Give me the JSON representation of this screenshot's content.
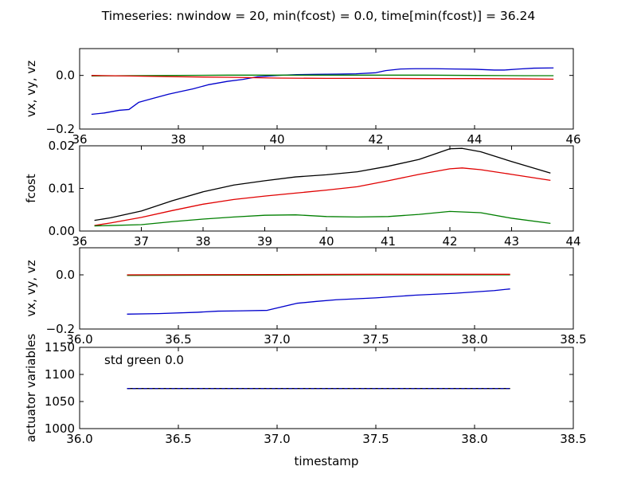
{
  "figure": {
    "title": "Timeseries: nwindow = 20, min(fcost) = 0.0, time[min(fcost)] = 36.24",
    "colors": {
      "blue": "#0000cc",
      "green": "#007f00",
      "red": "#e00000",
      "black": "#000000"
    }
  },
  "chart_data": [
    {
      "type": "line",
      "ylabel": "vx, vy, vz",
      "xlim": [
        36,
        46
      ],
      "ylim": [
        -0.2,
        0.1
      ],
      "xticks": [
        36,
        38,
        40,
        42,
        44,
        46
      ],
      "yticks": [
        -0.2,
        0.0
      ],
      "xticklabels": [
        "36",
        "38",
        "40",
        "42",
        "44",
        "46"
      ],
      "yticklabels": [
        "−0.2",
        "0.0"
      ],
      "series": [
        {
          "color": "#0000cc",
          "x": [
            36.24,
            36.5,
            36.8,
            37.0,
            37.2,
            37.5,
            37.8,
            38.0,
            38.3,
            38.6,
            39.0,
            39.3,
            39.6,
            40.0,
            40.4,
            40.8,
            41.2,
            41.6,
            42.0,
            42.2,
            42.5,
            42.8,
            43.2,
            43.6,
            44.0,
            44.4,
            44.6,
            44.9,
            45.2,
            45.6
          ],
          "y": [
            -0.145,
            -0.14,
            -0.13,
            -0.127,
            -0.1,
            -0.085,
            -0.07,
            -0.062,
            -0.05,
            -0.035,
            -0.022,
            -0.015,
            -0.005,
            0.0,
            0.003,
            0.004,
            0.005,
            0.006,
            0.01,
            0.018,
            0.024,
            0.025,
            0.025,
            0.024,
            0.023,
            0.02,
            0.02,
            0.024,
            0.027,
            0.028
          ]
        },
        {
          "color": "#007f00",
          "x": [
            36.24,
            37.0,
            38.0,
            39.0,
            40.0,
            41.0,
            42.0,
            43.0,
            44.0,
            45.0,
            45.6
          ],
          "y": [
            -0.002,
            -0.001,
            0.0,
            0.001,
            0.001,
            0.001,
            0.001,
            0.001,
            0.0,
            -0.001,
            -0.001
          ]
        },
        {
          "color": "#e00000",
          "x": [
            36.24,
            37.0,
            38.0,
            39.0,
            40.0,
            41.0,
            42.0,
            43.0,
            44.0,
            45.0,
            45.6
          ],
          "y": [
            0.0,
            -0.002,
            -0.005,
            -0.007,
            -0.01,
            -0.011,
            -0.011,
            -0.012,
            -0.012,
            -0.013,
            -0.014
          ]
        }
      ]
    },
    {
      "type": "line",
      "ylabel": "fcost",
      "xlim": [
        36,
        44
      ],
      "ylim": [
        0.0,
        0.02
      ],
      "xticks": [
        36,
        37,
        38,
        39,
        40,
        41,
        42,
        43,
        44
      ],
      "yticks": [
        0.0,
        0.01,
        0.02
      ],
      "xticklabels": [
        "36",
        "37",
        "38",
        "39",
        "40",
        "41",
        "42",
        "43",
        "44"
      ],
      "yticklabels": [
        "0.00",
        "0.01",
        "0.02"
      ],
      "series": [
        {
          "color": "#000000",
          "x": [
            36.24,
            36.5,
            37.0,
            37.5,
            38.0,
            38.5,
            39.0,
            39.5,
            40.0,
            40.5,
            41.0,
            41.5,
            41.8,
            42.0,
            42.2,
            42.5,
            43.0,
            43.63
          ],
          "y": [
            0.0025,
            0.0031,
            0.0047,
            0.0071,
            0.0092,
            0.0108,
            0.0118,
            0.0127,
            0.0132,
            0.0139,
            0.0152,
            0.0168,
            0.0183,
            0.0193,
            0.0194,
            0.0186,
            0.0163,
            0.0136
          ]
        },
        {
          "color": "#e00000",
          "x": [
            36.24,
            36.5,
            37.0,
            37.5,
            38.0,
            38.5,
            39.0,
            39.5,
            40.0,
            40.5,
            41.0,
            41.5,
            42.0,
            42.2,
            42.5,
            43.0,
            43.63
          ],
          "y": [
            0.0013,
            0.0019,
            0.0032,
            0.0048,
            0.0063,
            0.0074,
            0.0082,
            0.0089,
            0.0096,
            0.0104,
            0.0118,
            0.0133,
            0.0146,
            0.0148,
            0.0144,
            0.0133,
            0.0119
          ]
        },
        {
          "color": "#007f00",
          "x": [
            36.24,
            36.5,
            37.0,
            37.5,
            38.0,
            38.5,
            39.0,
            39.5,
            40.0,
            40.5,
            41.0,
            41.5,
            42.0,
            42.5,
            43.0,
            43.63
          ],
          "y": [
            0.0012,
            0.0013,
            0.0015,
            0.0022,
            0.0028,
            0.0033,
            0.0037,
            0.0038,
            0.0034,
            0.0033,
            0.0034,
            0.0039,
            0.0046,
            0.0043,
            0.003,
            0.0018
          ]
        }
      ]
    },
    {
      "type": "line",
      "ylabel": "vx, vy, vz",
      "xlim": [
        36.0,
        38.5
      ],
      "ylim": [
        -0.2,
        0.1
      ],
      "xticks": [
        36.0,
        36.5,
        37.0,
        37.5,
        38.0,
        38.5
      ],
      "yticks": [
        -0.2,
        0.0
      ],
      "xticklabels": [
        "36.0",
        "36.5",
        "37.0",
        "37.5",
        "38.0",
        "38.5"
      ],
      "yticklabels": [
        "−0.2",
        "0.0"
      ],
      "series": [
        {
          "color": "#0000cc",
          "x": [
            36.24,
            36.4,
            36.6,
            36.7,
            36.8,
            36.95,
            37.1,
            37.2,
            37.3,
            37.5,
            37.7,
            37.9,
            38.1,
            38.18
          ],
          "y": [
            -0.145,
            -0.143,
            -0.138,
            -0.134,
            -0.133,
            -0.131,
            -0.105,
            -0.098,
            -0.092,
            -0.085,
            -0.075,
            -0.068,
            -0.058,
            -0.052
          ]
        },
        {
          "color": "#007f00",
          "x": [
            36.24,
            37.0,
            37.5,
            38.18
          ],
          "y": [
            -0.002,
            -0.001,
            0.0,
            0.0
          ]
        },
        {
          "color": "#e00000",
          "x": [
            36.24,
            37.0,
            37.5,
            38.18
          ],
          "y": [
            0.0,
            0.001,
            0.002,
            0.002
          ]
        }
      ]
    },
    {
      "type": "line",
      "ylabel": "actuator variables",
      "xlabel": "timestamp",
      "xlim": [
        36.0,
        38.5
      ],
      "ylim": [
        1000,
        1150
      ],
      "xticks": [
        36.0,
        36.5,
        37.0,
        37.5,
        38.0,
        38.5
      ],
      "yticks": [
        1000,
        1050,
        1100,
        1150
      ],
      "xticklabels": [
        "36.0",
        "36.5",
        "37.0",
        "37.5",
        "38.0",
        "38.5"
      ],
      "yticklabels": [
        "1000",
        "1050",
        "1100",
        "1150"
      ],
      "annotation": "std green 0.0",
      "series": [
        {
          "color": "#000000",
          "x": [
            36.24,
            38.18
          ],
          "y": [
            1074,
            1074
          ]
        },
        {
          "color": "#0000cc",
          "dashed": true,
          "x": [
            36.24,
            38.18
          ],
          "y": [
            1074,
            1074
          ]
        }
      ]
    }
  ]
}
